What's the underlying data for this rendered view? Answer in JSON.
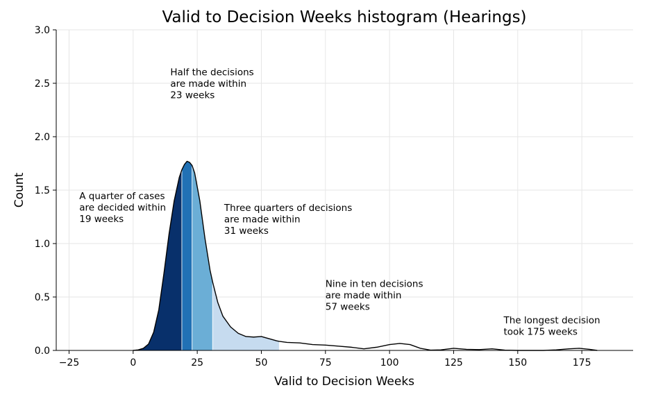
{
  "chart_data": {
    "type": "area",
    "title": "Valid to Decision Weeks histogram (Hearings)",
    "xlabel": "Valid to Decision Weeks",
    "ylabel": "Count",
    "xlim": [
      -30,
      195
    ],
    "ylim": [
      0,
      3.0
    ],
    "xticks": [
      -25,
      0,
      25,
      50,
      75,
      100,
      125,
      150,
      175
    ],
    "yticks": [
      0.0,
      0.5,
      1.0,
      1.5,
      2.0,
      2.5,
      3.0
    ],
    "xtick_labels": [
      "−25",
      "0",
      "25",
      "50",
      "75",
      "100",
      "125",
      "150",
      "175"
    ],
    "ytick_labels": [
      "0.0",
      "0.5",
      "1.0",
      "1.5",
      "2.0",
      "2.5",
      "3.0"
    ],
    "grid": true,
    "curve": {
      "x": [
        0,
        2,
        4,
        6,
        8,
        10,
        12,
        14,
        16,
        18,
        19,
        20,
        21,
        22,
        23,
        24,
        26,
        28,
        30,
        31,
        33,
        35,
        38,
        41,
        44,
        47,
        50,
        53,
        56,
        57,
        60,
        65,
        70,
        75,
        80,
        85,
        90,
        95,
        100,
        104,
        108,
        112,
        116,
        120,
        125,
        130,
        135,
        140,
        145,
        150,
        155,
        160,
        165,
        170,
        174,
        178,
        181
      ],
      "y": [
        0.0,
        0.005,
        0.02,
        0.06,
        0.17,
        0.38,
        0.72,
        1.09,
        1.4,
        1.62,
        1.69,
        1.74,
        1.77,
        1.76,
        1.73,
        1.66,
        1.4,
        1.05,
        0.75,
        0.64,
        0.45,
        0.32,
        0.22,
        0.16,
        0.13,
        0.125,
        0.13,
        0.11,
        0.09,
        0.085,
        0.075,
        0.07,
        0.055,
        0.05,
        0.04,
        0.03,
        0.015,
        0.03,
        0.055,
        0.065,
        0.055,
        0.02,
        0.003,
        0.005,
        0.02,
        0.01,
        0.008,
        0.015,
        0.003,
        0.0,
        0.0,
        0.0,
        0.005,
        0.015,
        0.02,
        0.01,
        0.0
      ]
    },
    "bands": [
      {
        "from": 0,
        "to": 19,
        "color": "#08306b"
      },
      {
        "from": 19,
        "to": 23,
        "color": "#2171b5"
      },
      {
        "from": 23,
        "to": 31,
        "color": "#6baed6"
      },
      {
        "from": 31,
        "to": 57,
        "color": "#c6dbef"
      }
    ],
    "annotations": [
      {
        "x": -21,
        "y": 1.44,
        "lines": [
          "A quarter of cases",
          "are decided within",
          "19 weeks"
        ]
      },
      {
        "x": 14.5,
        "y": 2.6,
        "lines": [
          "Half the decisions",
          "are made within",
          "23 weeks"
        ]
      },
      {
        "x": 35.5,
        "y": 1.33,
        "lines": [
          "Three quarters of decisions",
          "are made within",
          "31 weeks"
        ]
      },
      {
        "x": 75,
        "y": 0.62,
        "lines": [
          "Nine in ten decisions",
          "are made within",
          "57 weeks"
        ]
      },
      {
        "x": 144.5,
        "y": 0.28,
        "lines": [
          "The longest decision",
          "took 175 weeks"
        ]
      }
    ]
  }
}
